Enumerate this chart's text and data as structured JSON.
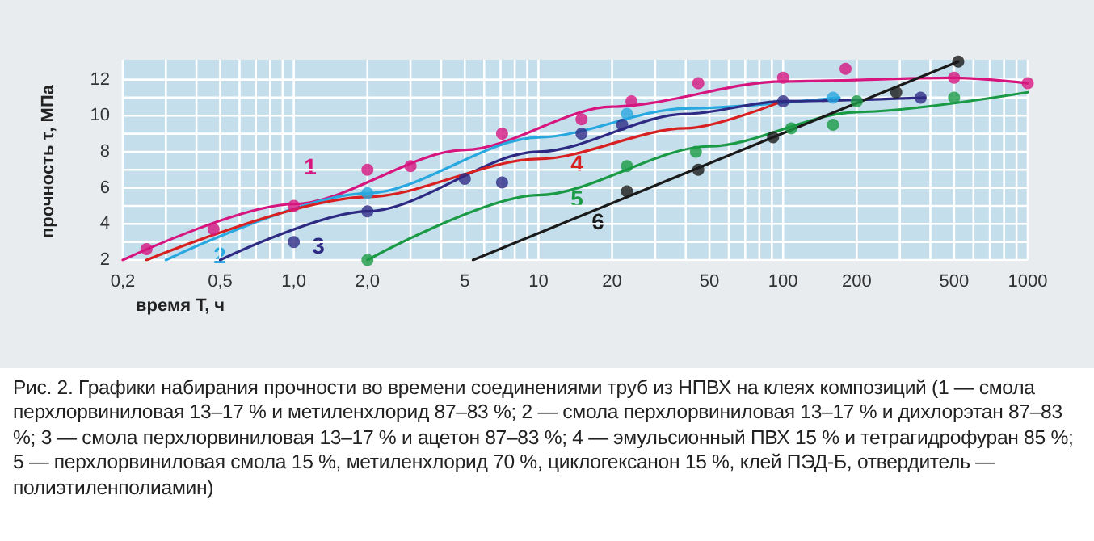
{
  "chart_data": {
    "type": "scatter",
    "xlabel": "время T, ч",
    "ylabel": "прочность τ, МПа",
    "log": "x",
    "xlim": [
      0.2,
      1000
    ],
    "ylim": [
      2,
      13.1
    ],
    "xticks": [
      {
        "value": 0.2,
        "label": "0,2"
      },
      {
        "value": 0.3,
        "label": null
      },
      {
        "value": 0.4,
        "label": null
      },
      {
        "value": 0.5,
        "label": "0,5"
      },
      {
        "value": 0.6,
        "label": null
      },
      {
        "value": 0.7,
        "label": null
      },
      {
        "value": 0.8,
        "label": null
      },
      {
        "value": 0.9,
        "label": null
      },
      {
        "value": 1,
        "label": "1,0"
      },
      {
        "value": 2,
        "label": "2,0"
      },
      {
        "value": 3,
        "label": null
      },
      {
        "value": 4,
        "label": null
      },
      5,
      {
        "value": 6,
        "label": null
      },
      {
        "value": 7,
        "label": null
      },
      {
        "value": 8,
        "label": null
      },
      {
        "value": 9,
        "label": null
      },
      10,
      20,
      {
        "value": 30,
        "label": null
      },
      {
        "value": 40,
        "label": null
      },
      50,
      {
        "value": 60,
        "label": null
      },
      {
        "value": 70,
        "label": null
      },
      {
        "value": 80,
        "label": null
      },
      {
        "value": 90,
        "label": null
      },
      100,
      200,
      {
        "value": 300,
        "label": null
      },
      {
        "value": 400,
        "label": null
      },
      500,
      {
        "value": 600,
        "label": null
      },
      {
        "value": 700,
        "label": null
      },
      {
        "value": 800,
        "label": null
      },
      {
        "value": 900,
        "label": null
      },
      1000
    ],
    "yticks": [
      2,
      {
        "value": 3,
        "label": null
      },
      4,
      {
        "value": 5,
        "label": null
      },
      6,
      {
        "value": 7,
        "label": null
      },
      8,
      {
        "value": 9,
        "label": null
      },
      10,
      {
        "value": 11,
        "label": null
      },
      12
    ],
    "grid": true,
    "legend": false,
    "marker": "circle",
    "series": [
      {
        "color": "#d6157f",
        "x": [
          0.25,
          0.47,
          1.0,
          2.0,
          3.0,
          7.1,
          15,
          24,
          45,
          100,
          180,
          500,
          1000
        ],
        "values": [
          2.6,
          3.7,
          5.0,
          7.0,
          7.2,
          9.0,
          9.8,
          10.8,
          11.8,
          12.1,
          12.6,
          12.1,
          11.8
        ]
      },
      {
        "type": "line",
        "name": "1",
        "color": "#d6157f",
        "marker": "none",
        "x": [
          0.2,
          1,
          5,
          20,
          100,
          500,
          1000
        ],
        "values": [
          2.0,
          5.1,
          8.1,
          10.5,
          11.9,
          12.1,
          11.8
        ]
      },
      {
        "color": "#29a8e0",
        "x": [
          2.0,
          23,
          160
        ],
        "values": [
          5.7,
          10.1,
          11.0
        ]
      },
      {
        "type": "line",
        "name": "2",
        "color": "#29a8e0",
        "marker": "none",
        "x": [
          0.3,
          2,
          10,
          40,
          170
        ],
        "values": [
          2.0,
          5.7,
          8.8,
          10.4,
          11.0
        ]
      },
      {
        "color": "#2e2a84",
        "x": [
          1.0,
          2.0,
          5.0,
          7.1,
          15,
          22,
          100,
          365
        ],
        "values": [
          3.0,
          4.7,
          6.5,
          6.3,
          9.0,
          9.5,
          10.8,
          11.0
        ]
      },
      {
        "type": "line",
        "name": "3",
        "color": "#2e2a84",
        "marker": "none",
        "x": [
          0.5,
          2,
          10,
          40,
          100,
          380
        ],
        "values": [
          2.0,
          4.7,
          8.0,
          10.1,
          10.8,
          11.0
        ]
      },
      {
        "type": "line",
        "name": "4",
        "color": "#d92020",
        "marker": "none",
        "x": [
          0.25,
          2,
          10,
          40,
          95
        ],
        "values": [
          2.0,
          5.5,
          7.6,
          9.3,
          10.7
        ]
      },
      {
        "color": "#1a9a45",
        "x": [
          2.0,
          23,
          44,
          108,
          160,
          200,
          500
        ],
        "values": [
          2.0,
          7.2,
          8.0,
          9.3,
          9.5,
          10.8,
          11.0
        ]
      },
      {
        "type": "line",
        "name": "5",
        "color": "#1a9a45",
        "marker": "none",
        "x": [
          2,
          10,
          50,
          200,
          1000
        ],
        "values": [
          2.0,
          5.6,
          8.3,
          10.2,
          11.3
        ]
      },
      {
        "color": "#1a1a1a",
        "x": [
          23,
          45,
          91,
          290,
          520
        ],
        "values": [
          5.8,
          7.0,
          8.8,
          11.3,
          13.0
        ]
      },
      {
        "type": "line",
        "name": "6",
        "color": "#1a1a1a",
        "marker": "none",
        "x": [
          5.4,
          520
        ],
        "values": [
          2.0,
          13.0
        ]
      }
    ],
    "annotations": [
      "Рис. 2. Графики набирания прочности во времени соединениями труб из НПВХ на клеях композиций (1 — смола перхлорвиниловая 13–17 % и метиленхлорид 87–83 %; 2 — смола перхлорвиниловая 13–17 % и дихлорэтан 87–83 %; 3 — смола перхлорвиниловая 13–17 % и ацетон 87–83 %; 4 — эмульсионный ПВХ 15 % и тетрагидрофуран 85 %; 5 — перхлорвиниловая смола 15 %, метиленхлорид 70 %, циклогексанон 15 %, клей ПЭД-Б, отвердитель — полиэтиленполиамин)"
    ]
  }
}
